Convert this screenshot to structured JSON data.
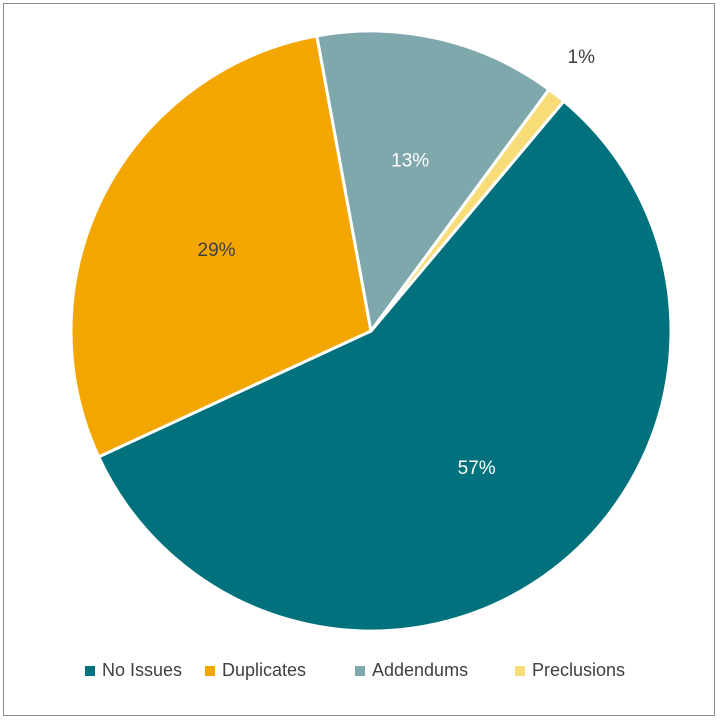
{
  "chart_data": {
    "type": "pie",
    "title": "",
    "legend_position": "bottom",
    "slices": [
      {
        "label": "No Issues",
        "value": 57,
        "display": "57%",
        "color": "#00717d",
        "label_color": "#ffffff"
      },
      {
        "label": "Duplicates",
        "value": 29,
        "display": "29%",
        "color": "#f3a600",
        "label_color": "#404040"
      },
      {
        "label": "Addendums",
        "value": 13,
        "display": "13%",
        "color": "#7fa8ad",
        "label_color": "#ffffff"
      },
      {
        "label": "Preclusions",
        "value": 1,
        "display": "1%",
        "color": "#f8dc78",
        "label_color": "#404040"
      }
    ]
  }
}
